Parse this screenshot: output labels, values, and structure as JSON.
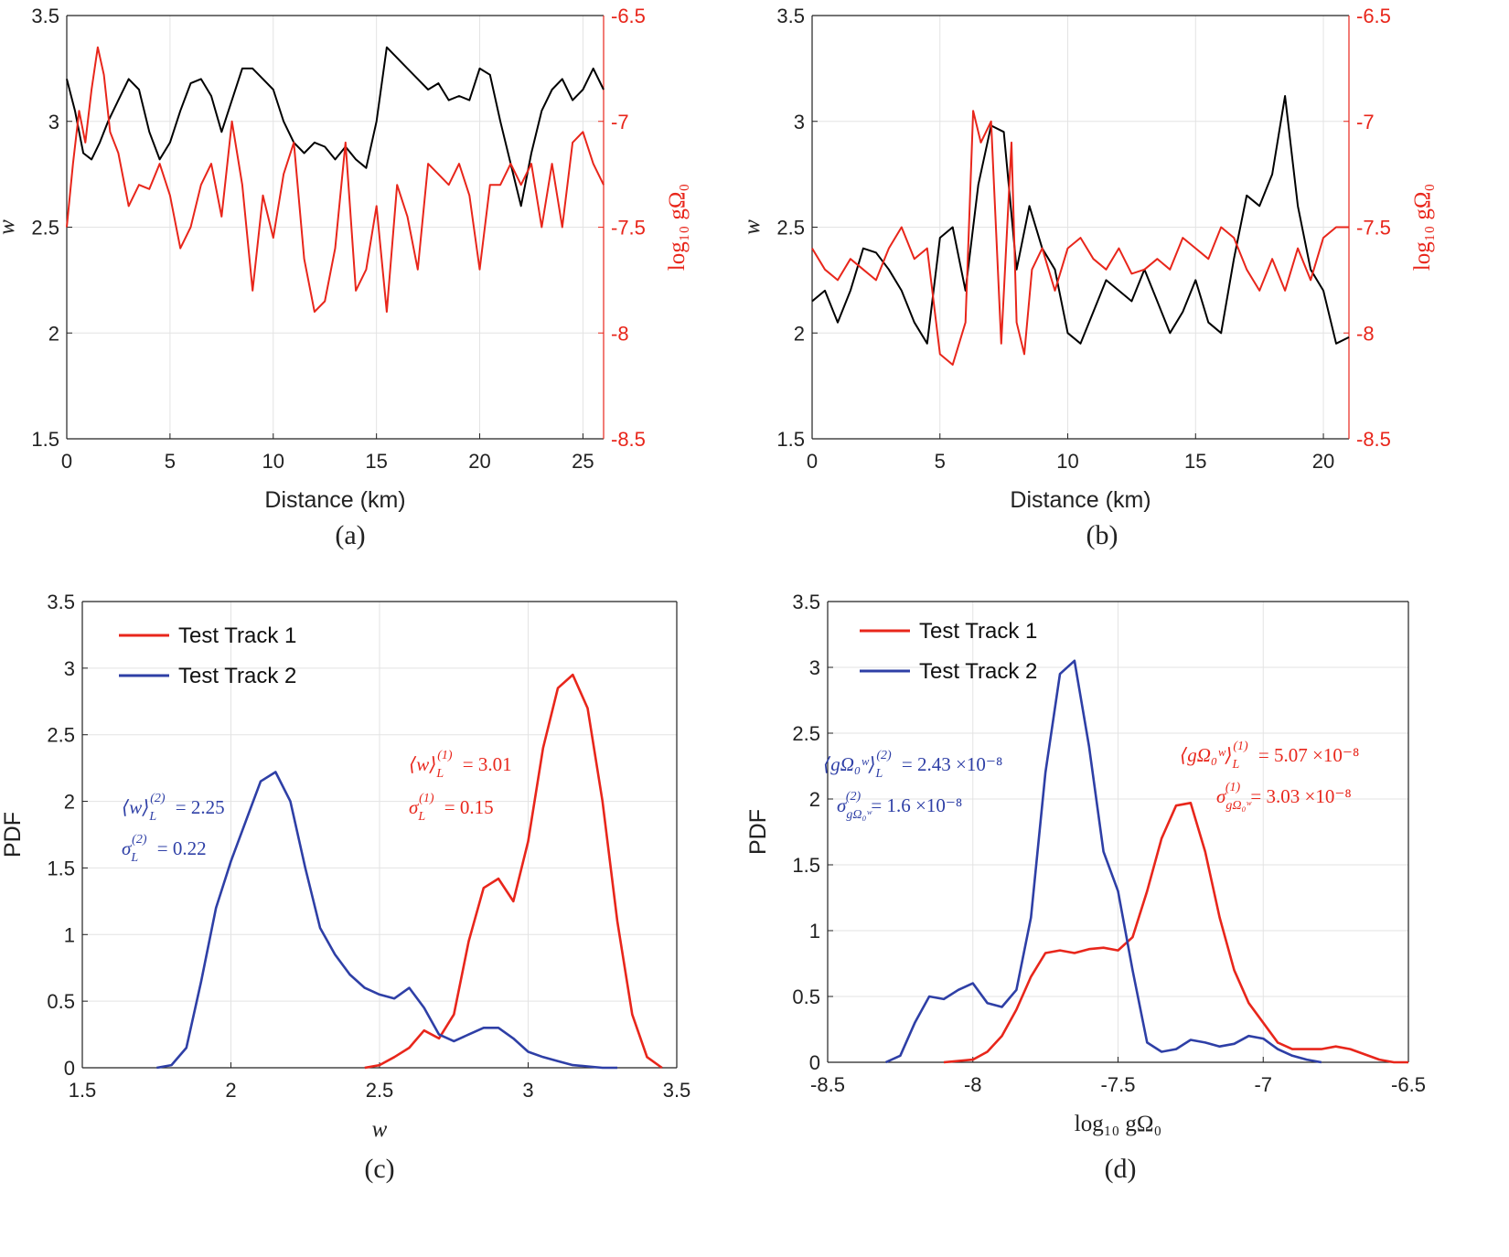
{
  "panels": [
    {
      "id": "a",
      "caption": "(a)",
      "chart_data": {
        "type": "line",
        "title": "",
        "xlabel": "Distance (km)",
        "ylabel": "w",
        "ylabel_right": "log₁₀ gΩ₀",
        "xlim": [
          0,
          26
        ],
        "ylim": [
          1.5,
          3.5
        ],
        "ylim_right": [
          -8.5,
          -6.5
        ],
        "xticks": [
          "0",
          "5",
          "10",
          "15",
          "20",
          "25"
        ],
        "yticks": [
          "1.5",
          "2",
          "2.5",
          "3",
          "3.5"
        ],
        "yticks_right": [
          "-8.5",
          "-8",
          "-7.5",
          "-7",
          "-6.5"
        ],
        "grid": true,
        "series": [
          {
            "axis": "left",
            "color": "#000000",
            "x": [
              0,
              0.4,
              0.8,
              1.2,
              1.6,
              2.0,
              2.5,
              3.0,
              3.5,
              4.0,
              4.5,
              5.0,
              5.5,
              6.0,
              6.5,
              7.0,
              7.5,
              8.0,
              8.5,
              9.0,
              9.5,
              10.0,
              10.5,
              11.0,
              11.5,
              12.0,
              12.5,
              13.0,
              13.5,
              14.0,
              14.5,
              15.0,
              15.5,
              16.0,
              16.5,
              17.0,
              17.5,
              18.0,
              18.5,
              19.0,
              19.5,
              20.0,
              20.5,
              21.0,
              21.5,
              22.0,
              22.5,
              23.0,
              23.5,
              24.0,
              24.5,
              25.0,
              25.5,
              26.0
            ],
            "values": [
              3.2,
              3.05,
              2.85,
              2.82,
              2.9,
              3.0,
              3.1,
              3.2,
              3.15,
              2.95,
              2.82,
              2.9,
              3.05,
              3.18,
              3.2,
              3.12,
              2.95,
              3.1,
              3.25,
              3.25,
              3.2,
              3.15,
              3.0,
              2.9,
              2.85,
              2.9,
              2.88,
              2.82,
              2.88,
              2.82,
              2.78,
              3.0,
              3.35,
              3.3,
              3.25,
              3.2,
              3.15,
              3.18,
              3.1,
              3.12,
              3.1,
              3.25,
              3.22,
              3.0,
              2.8,
              2.6,
              2.85,
              3.05,
              3.15,
              3.2,
              3.1,
              3.15,
              3.25,
              3.15
            ]
          },
          {
            "axis": "right",
            "color": "#e8261b",
            "x": [
              0,
              0.3,
              0.6,
              0.9,
              1.2,
              1.5,
              1.8,
              2.1,
              2.5,
              3.0,
              3.5,
              4.0,
              4.5,
              5.0,
              5.5,
              6.0,
              6.5,
              7.0,
              7.5,
              8.0,
              8.5,
              9.0,
              9.5,
              10.0,
              10.5,
              11.0,
              11.5,
              12.0,
              12.5,
              13.0,
              13.5,
              14.0,
              14.5,
              15.0,
              15.5,
              16.0,
              16.5,
              17.0,
              17.5,
              18.0,
              18.5,
              19.0,
              19.5,
              20.0,
              20.5,
              21.0,
              21.5,
              22.0,
              22.5,
              23.0,
              23.5,
              24.0,
              24.5,
              25.0,
              25.5,
              26.0
            ],
            "values": [
              -7.5,
              -7.2,
              -6.95,
              -7.1,
              -6.85,
              -6.65,
              -6.78,
              -7.05,
              -7.15,
              -7.4,
              -7.3,
              -7.32,
              -7.2,
              -7.35,
              -7.6,
              -7.5,
              -7.3,
              -7.2,
              -7.45,
              -7.0,
              -7.3,
              -7.8,
              -7.35,
              -7.55,
              -7.25,
              -7.1,
              -7.65,
              -7.9,
              -7.85,
              -7.6,
              -7.1,
              -7.8,
              -7.7,
              -7.4,
              -7.9,
              -7.3,
              -7.45,
              -7.7,
              -7.2,
              -7.25,
              -7.3,
              -7.2,
              -7.35,
              -7.7,
              -7.3,
              -7.3,
              -7.2,
              -7.3,
              -7.2,
              -7.5,
              -7.2,
              -7.5,
              -7.1,
              -7.05,
              -7.2,
              -7.3
            ]
          }
        ]
      }
    },
    {
      "id": "b",
      "caption": "(b)",
      "chart_data": {
        "type": "line",
        "title": "",
        "xlabel": "Distance (km)",
        "ylabel": "w",
        "ylabel_right": "log₁₀ gΩ₀",
        "xlim": [
          0,
          21
        ],
        "ylim": [
          1.5,
          3.5
        ],
        "ylim_right": [
          -8.5,
          -6.5
        ],
        "xticks": [
          "0",
          "5",
          "10",
          "15",
          "20"
        ],
        "yticks": [
          "1.5",
          "2",
          "2.5",
          "3",
          "3.5"
        ],
        "yticks_right": [
          "-8.5",
          "-8",
          "-7.5",
          "-7",
          "-6.5"
        ],
        "grid": true,
        "series": [
          {
            "axis": "left",
            "color": "#000000",
            "x": [
              0,
              0.5,
              1.0,
              1.5,
              2.0,
              2.5,
              3.0,
              3.5,
              4.0,
              4.5,
              5.0,
              5.5,
              6.0,
              6.5,
              7.0,
              7.5,
              8.0,
              8.5,
              9.0,
              9.5,
              10.0,
              10.5,
              11.0,
              11.5,
              12.0,
              12.5,
              13.0,
              13.5,
              14.0,
              14.5,
              15.0,
              15.5,
              16.0,
              16.5,
              17.0,
              17.5,
              18.0,
              18.5,
              19.0,
              19.5,
              20.0,
              20.5,
              21.0
            ],
            "values": [
              2.15,
              2.2,
              2.05,
              2.2,
              2.4,
              2.38,
              2.3,
              2.2,
              2.05,
              1.95,
              2.45,
              2.5,
              2.2,
              2.7,
              2.98,
              2.95,
              2.3,
              2.6,
              2.4,
              2.3,
              2.0,
              1.95,
              2.1,
              2.25,
              2.2,
              2.15,
              2.3,
              2.15,
              2.0,
              2.1,
              2.25,
              2.05,
              2.0,
              2.35,
              2.65,
              2.6,
              2.75,
              3.12,
              2.6,
              2.3,
              2.2,
              1.95,
              1.98
            ]
          },
          {
            "axis": "right",
            "color": "#e8261b",
            "x": [
              0,
              0.5,
              1.0,
              1.5,
              2.0,
              2.5,
              3.0,
              3.5,
              4.0,
              4.5,
              5.0,
              5.5,
              6.0,
              6.3,
              6.6,
              7.0,
              7.4,
              7.8,
              8.0,
              8.3,
              8.6,
              9.0,
              9.5,
              10.0,
              10.5,
              11.0,
              11.5,
              12.0,
              12.5,
              13.0,
              13.5,
              14.0,
              14.5,
              15.0,
              15.5,
              16.0,
              16.5,
              17.0,
              17.5,
              18.0,
              18.5,
              19.0,
              19.5,
              20.0,
              20.5,
              21.0
            ],
            "values": [
              -7.6,
              -7.7,
              -7.75,
              -7.65,
              -7.7,
              -7.75,
              -7.6,
              -7.5,
              -7.65,
              -7.6,
              -8.1,
              -8.15,
              -7.95,
              -6.95,
              -7.1,
              -7.0,
              -8.05,
              -7.1,
              -7.95,
              -8.1,
              -7.7,
              -7.6,
              -7.8,
              -7.6,
              -7.55,
              -7.65,
              -7.7,
              -7.6,
              -7.72,
              -7.7,
              -7.65,
              -7.7,
              -7.55,
              -7.6,
              -7.65,
              -7.5,
              -7.55,
              -7.7,
              -7.8,
              -7.65,
              -7.8,
              -7.6,
              -7.75,
              -7.55,
              -7.5,
              -7.5
            ]
          }
        ]
      }
    },
    {
      "id": "c",
      "caption": "(c)",
      "chart_data": {
        "type": "line",
        "title": "",
        "xlabel": "w",
        "ylabel": "PDF",
        "xlim": [
          1.5,
          3.5
        ],
        "ylim": [
          0,
          3.5
        ],
        "xticks": [
          "1.5",
          "2",
          "2.5",
          "3",
          "3.5"
        ],
        "yticks": [
          "0",
          "0.5",
          "1",
          "1.5",
          "2",
          "2.5",
          "3",
          "3.5"
        ],
        "grid": true,
        "legend": "top-left",
        "series": [
          {
            "name": "Test Track 1",
            "color": "#e8261b",
            "x": [
              2.45,
              2.5,
              2.55,
              2.6,
              2.65,
              2.7,
              2.75,
              2.8,
              2.85,
              2.9,
              2.95,
              3.0,
              3.05,
              3.1,
              3.15,
              3.2,
              3.25,
              3.3,
              3.35,
              3.4,
              3.45
            ],
            "values": [
              0,
              0.02,
              0.08,
              0.15,
              0.28,
              0.22,
              0.4,
              0.95,
              1.35,
              1.42,
              1.25,
              1.7,
              2.4,
              2.85,
              2.95,
              2.7,
              2.0,
              1.1,
              0.4,
              0.08,
              0
            ]
          },
          {
            "name": "Test Track 2",
            "color": "#2e3fa6",
            "x": [
              1.75,
              1.8,
              1.85,
              1.9,
              1.95,
              2.0,
              2.05,
              2.1,
              2.15,
              2.2,
              2.25,
              2.3,
              2.35,
              2.4,
              2.45,
              2.5,
              2.55,
              2.6,
              2.65,
              2.7,
              2.75,
              2.8,
              2.85,
              2.9,
              2.95,
              3.0,
              3.05,
              3.1,
              3.15,
              3.2,
              3.25,
              3.3
            ],
            "values": [
              0,
              0.02,
              0.15,
              0.65,
              1.2,
              1.55,
              1.85,
              2.15,
              2.22,
              2.0,
              1.5,
              1.05,
              0.85,
              0.7,
              0.6,
              0.55,
              0.52,
              0.6,
              0.45,
              0.25,
              0.2,
              0.25,
              0.3,
              0.3,
              0.22,
              0.12,
              0.08,
              0.05,
              0.02,
              0.01,
              0,
              0
            ]
          }
        ],
        "annotations": [
          {
            "text_mean": "⟨w⟩",
            "sub": "L",
            "sup": "(2)",
            "value": "= 2.25",
            "color": "#2e3fa6"
          },
          {
            "text_mean": "σ",
            "sub": "L",
            "sup": "(2)",
            "value": "= 0.22",
            "color": "#2e3fa6"
          },
          {
            "text_mean": "⟨w⟩",
            "sub": "L",
            "sup": "(1)",
            "value": "= 3.01",
            "color": "#e8261b"
          },
          {
            "text_mean": "σ",
            "sub": "L",
            "sup": "(1)",
            "value": "= 0.15",
            "color": "#e8261b"
          }
        ]
      }
    },
    {
      "id": "d",
      "caption": "(d)",
      "chart_data": {
        "type": "line",
        "title": "",
        "xlabel": "log₁₀ gΩ₀",
        "ylabel": "PDF",
        "xlim": [
          -8.5,
          -6.5
        ],
        "ylim": [
          0,
          3.5
        ],
        "xticks": [
          "-8.5",
          "-8",
          "-7.5",
          "-7",
          "-6.5"
        ],
        "yticks": [
          "0",
          "0.5",
          "1",
          "1.5",
          "2",
          "2.5",
          "3",
          "3.5"
        ],
        "grid": true,
        "legend": "top-left",
        "series": [
          {
            "name": "Test Track 1",
            "color": "#e8261b",
            "x": [
              -8.1,
              -8.0,
              -7.95,
              -7.9,
              -7.85,
              -7.8,
              -7.75,
              -7.7,
              -7.65,
              -7.6,
              -7.55,
              -7.5,
              -7.45,
              -7.4,
              -7.35,
              -7.3,
              -7.25,
              -7.2,
              -7.15,
              -7.1,
              -7.05,
              -7.0,
              -6.95,
              -6.9,
              -6.85,
              -6.8,
              -6.75,
              -6.7,
              -6.65,
              -6.6,
              -6.55,
              -6.5
            ],
            "values": [
              0,
              0.02,
              0.08,
              0.2,
              0.4,
              0.65,
              0.83,
              0.85,
              0.83,
              0.86,
              0.87,
              0.85,
              0.95,
              1.3,
              1.7,
              1.95,
              1.97,
              1.6,
              1.1,
              0.7,
              0.45,
              0.3,
              0.15,
              0.1,
              0.1,
              0.1,
              0.12,
              0.1,
              0.06,
              0.02,
              0,
              0
            ]
          },
          {
            "name": "Test Track 2",
            "color": "#2e3fa6",
            "x": [
              -8.3,
              -8.25,
              -8.2,
              -8.15,
              -8.1,
              -8.05,
              -8.0,
              -7.95,
              -7.9,
              -7.85,
              -7.8,
              -7.75,
              -7.7,
              -7.65,
              -7.6,
              -7.55,
              -7.5,
              -7.45,
              -7.4,
              -7.35,
              -7.3,
              -7.25,
              -7.2,
              -7.15,
              -7.1,
              -7.05,
              -7.0,
              -6.95,
              -6.9,
              -6.85,
              -6.8
            ],
            "values": [
              0,
              0.05,
              0.3,
              0.5,
              0.48,
              0.55,
              0.6,
              0.45,
              0.42,
              0.55,
              1.1,
              2.2,
              2.95,
              3.05,
              2.4,
              1.6,
              1.3,
              0.7,
              0.15,
              0.08,
              0.1,
              0.17,
              0.15,
              0.12,
              0.14,
              0.2,
              0.18,
              0.1,
              0.05,
              0.02,
              0
            ]
          }
        ],
        "annotations": [
          {
            "text_mean": "⟨gΩ₀ʷ⟩",
            "sub": "L",
            "sup": "(2)",
            "value": "= 2.43 ×10⁻⁸",
            "color": "#2e3fa6"
          },
          {
            "text_mean": "σ",
            "sub": "gΩ₀ʷ",
            "sup": "(2)",
            "value": "= 1.6 ×10⁻⁸",
            "color": "#2e3fa6"
          },
          {
            "text_mean": "⟨gΩ₀ʷ⟩",
            "sub": "L",
            "sup": "(1)",
            "value": "= 5.07 ×10⁻⁸",
            "color": "#e8261b"
          },
          {
            "text_mean": "σ",
            "sub": "gΩ₀ʷ",
            "sup": "(1)",
            "value": "= 3.03 ×10⁻⁸",
            "color": "#e8261b"
          }
        ]
      }
    }
  ]
}
